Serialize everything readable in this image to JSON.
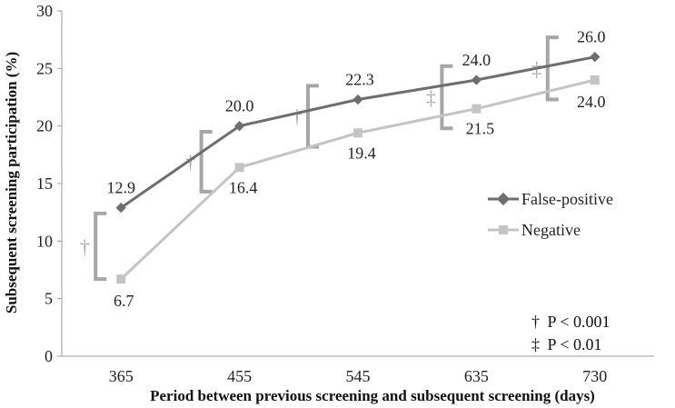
{
  "chart_data": {
    "type": "line",
    "title": "",
    "xlabel": "Period between previous screening and subsequent screening (days)",
    "ylabel": "Subsequent screening participation (%)",
    "categories": [
      "365",
      "455",
      "545",
      "635",
      "730"
    ],
    "ylim": [
      0,
      30
    ],
    "yticks": [
      0,
      5,
      10,
      15,
      20,
      25,
      30
    ],
    "grid": false,
    "legend_position": "right",
    "series": [
      {
        "name": "False-positive",
        "values": [
          12.9,
          20.0,
          22.3,
          24.0,
          26.0
        ],
        "labels": [
          "12.9",
          "20.0",
          "22.3",
          "24.0",
          "26.0"
        ],
        "color": "#6e6e6e",
        "marker": "diamond"
      },
      {
        "name": "Negative",
        "values": [
          6.7,
          16.4,
          19.4,
          21.5,
          24.0
        ],
        "labels": [
          "6.7",
          "16.4",
          "19.4",
          "21.5",
          "24.0"
        ],
        "color": "#c4c4c4",
        "marker": "square"
      }
    ],
    "significance_brackets": [
      {
        "category_index": 0,
        "symbol": "†",
        "low": 6.7,
        "high": 12.4
      },
      {
        "category_index": 1,
        "symbol": "†",
        "low": 14.3,
        "high": 19.5
      },
      {
        "category_index": 2,
        "symbol": "†",
        "low": 18.2,
        "high": 23.5
      },
      {
        "category_index": 3,
        "symbol": "‡",
        "low": 19.8,
        "high": 25.2
      },
      {
        "category_index": 4,
        "symbol": "‡",
        "low": 22.3,
        "high": 27.7
      }
    ],
    "significance_notes": [
      {
        "symbol": "†",
        "text": "P < 0.001"
      },
      {
        "symbol": "‡",
        "text": "P < 0.01"
      }
    ],
    "colors": {
      "axis": "#9a9a9a",
      "bracket": "#a6a6a6",
      "dagger": "#a8a8a8"
    }
  }
}
